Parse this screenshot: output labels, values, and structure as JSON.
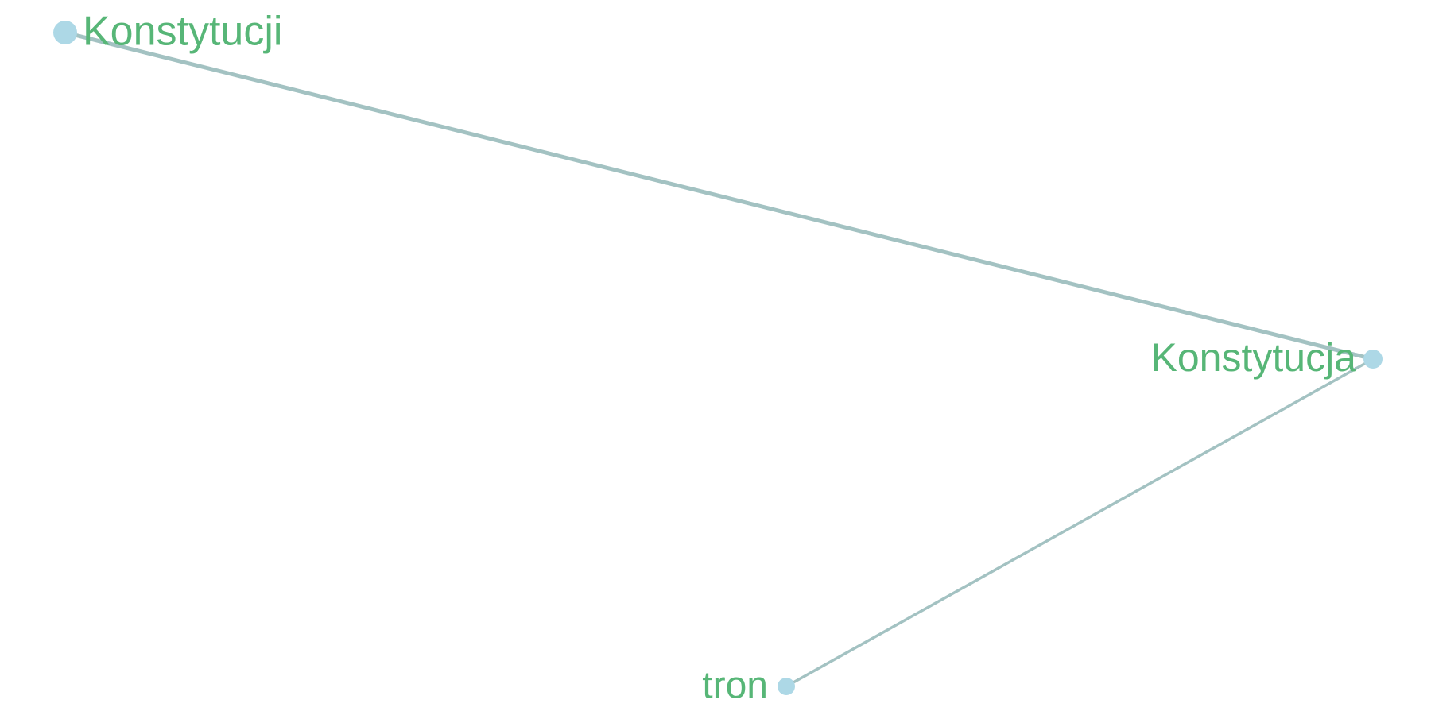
{
  "graph": {
    "nodes": [
      {
        "id": "n1",
        "label": "Konstytucji"
      },
      {
        "id": "n2",
        "label": "Konstytucja"
      },
      {
        "id": "n3",
        "label": "tron"
      }
    ],
    "edges": [
      {
        "source": "n1",
        "target": "n2"
      },
      {
        "source": "n2",
        "target": "n3"
      }
    ]
  },
  "colors": {
    "node_fill": "#add8e6",
    "label": "#57b677",
    "edge": "#a3c2c2",
    "background": "#ffffff"
  }
}
